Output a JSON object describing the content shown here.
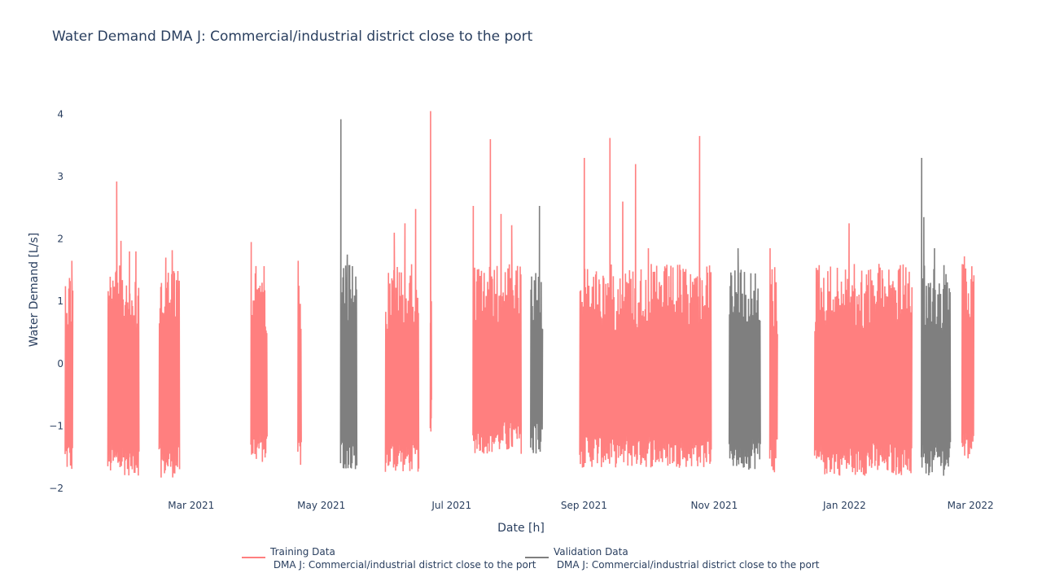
{
  "chart_data": {
    "type": "line",
    "title": "Water Demand DMA J: Commercial/industrial district close to the port",
    "xlabel": "Date [h]",
    "ylabel": "Water Demand [L/s]",
    "xlim": [
      "2021-01-01",
      "2022-03-04"
    ],
    "ylim": [
      -2,
      4.2
    ],
    "x_ticks": [
      "Mar 2021",
      "May 2021",
      "Jul 2021",
      "Sep 2021",
      "Nov 2021",
      "Jan 2022",
      "Mar 2022"
    ],
    "x_tick_dates": [
      "2021-03-01",
      "2021-05-01",
      "2021-07-01",
      "2021-09-01",
      "2021-11-01",
      "2022-01-01",
      "2022-03-01"
    ],
    "y_ticks": [
      -2,
      -1,
      0,
      1,
      2,
      3,
      4
    ],
    "y_tick_labels": [
      "−2",
      "−1",
      "0",
      "1",
      "2",
      "3",
      "4"
    ],
    "grid": false,
    "legend_position": "bottom-center",
    "series": [
      {
        "name": "Training Data\n DMA J: Commercial/industrial district close to the port",
        "legend_line1": "Training Data",
        "legend_line2": " DMA J: Commercial/industrial district close to the port",
        "color": "#ff7f7f",
        "segments": [
          {
            "start": "2021-01-01",
            "end": "2021-01-04",
            "min": -1.75,
            "max": 1.65,
            "peaks": [
              [
                "2021-01-04",
                1.65
              ],
              [
                "2021-01-01",
                0.8
              ]
            ]
          },
          {
            "start": "2021-01-21",
            "end": "2021-02-04",
            "min": -1.8,
            "max": 2.92,
            "peaks": [
              [
                "2021-01-25",
                2.92
              ],
              [
                "2021-01-27",
                1.97
              ],
              [
                "2021-01-31",
                1.8
              ],
              [
                "2021-02-03",
                1.8
              ]
            ]
          },
          {
            "start": "2021-02-14",
            "end": "2021-02-23",
            "min": -1.83,
            "max": 1.82,
            "peaks": [
              [
                "2021-02-20",
                1.82
              ],
              [
                "2021-02-17",
                1.7
              ]
            ]
          },
          {
            "start": "2021-03-29",
            "end": "2021-04-05",
            "min": -1.6,
            "max": 1.95,
            "peaks": [
              [
                "2021-03-29",
                1.95
              ],
              [
                "2021-04-01",
                1.1
              ]
            ]
          },
          {
            "start": "2021-04-20",
            "end": "2021-04-21",
            "min": -1.67,
            "max": 1.65,
            "peaks": [
              [
                "2021-04-20",
                1.65
              ]
            ]
          },
          {
            "start": "2021-05-31",
            "end": "2021-06-15",
            "min": -1.75,
            "max": 2.48,
            "peaks": [
              [
                "2021-06-04",
                2.1
              ],
              [
                "2021-06-09",
                2.25
              ],
              [
                "2021-06-14",
                2.48
              ]
            ]
          },
          {
            "start": "2021-06-21",
            "end": "2021-06-21",
            "min": -1.12,
            "max": 4.05,
            "peaks": [
              [
                "2021-06-21",
                4.05
              ]
            ]
          },
          {
            "start": "2021-07-11",
            "end": "2021-08-02",
            "min": -1.45,
            "max": 3.6,
            "peaks": [
              [
                "2021-07-11",
                2.53
              ],
              [
                "2021-07-19",
                3.6
              ],
              [
                "2021-07-24",
                2.4
              ],
              [
                "2021-07-29",
                2.22
              ]
            ]
          },
          {
            "start": "2021-08-30",
            "end": "2021-10-30",
            "min": -1.67,
            "max": 3.65,
            "peaks": [
              [
                "2021-09-01",
                3.3
              ],
              [
                "2021-09-13",
                3.62
              ],
              [
                "2021-09-19",
                2.6
              ],
              [
                "2021-09-25",
                3.2
              ],
              [
                "2021-10-01",
                1.85
              ],
              [
                "2021-10-25",
                3.65
              ]
            ]
          },
          {
            "start": "2021-11-27",
            "end": "2021-11-30",
            "min": -1.75,
            "max": 1.85,
            "peaks": [
              [
                "2021-11-27",
                1.85
              ]
            ]
          },
          {
            "start": "2021-12-18",
            "end": "2022-02-01",
            "min": -1.8,
            "max": 2.25,
            "peaks": [
              [
                "2021-12-20",
                1.58
              ],
              [
                "2022-01-03",
                2.25
              ],
              [
                "2022-01-17",
                1.6
              ],
              [
                "2022-01-27",
                1.58
              ]
            ]
          },
          {
            "start": "2022-02-25",
            "end": "2022-03-02",
            "min": -1.62,
            "max": 1.72,
            "peaks": [
              [
                "2022-02-26",
                1.72
              ]
            ]
          }
        ]
      },
      {
        "name": "Validation Data\n DMA J: Commercial/industrial district close to the port",
        "legend_line1": "Validation Data",
        "legend_line2": " DMA J: Commercial/industrial district close to the port",
        "color": "#7f7f7f",
        "segments": [
          {
            "start": "2021-05-10",
            "end": "2021-05-17",
            "min": -1.7,
            "max": 3.92,
            "peaks": [
              [
                "2021-05-10",
                3.92
              ],
              [
                "2021-05-13",
                1.75
              ]
            ]
          },
          {
            "start": "2021-08-07",
            "end": "2021-08-12",
            "min": -1.46,
            "max": 2.53,
            "peaks": [
              [
                "2021-08-11",
                2.53
              ]
            ]
          },
          {
            "start": "2021-11-08",
            "end": "2021-11-22",
            "min": -1.7,
            "max": 1.85,
            "peaks": [
              [
                "2021-11-12",
                1.85
              ],
              [
                "2021-11-18",
                1.45
              ]
            ]
          },
          {
            "start": "2022-02-06",
            "end": "2022-02-19",
            "min": -1.8,
            "max": 3.3,
            "peaks": [
              [
                "2022-02-06",
                3.3
              ],
              [
                "2022-02-07",
                2.35
              ],
              [
                "2022-02-12",
                1.85
              ]
            ]
          }
        ]
      }
    ]
  }
}
